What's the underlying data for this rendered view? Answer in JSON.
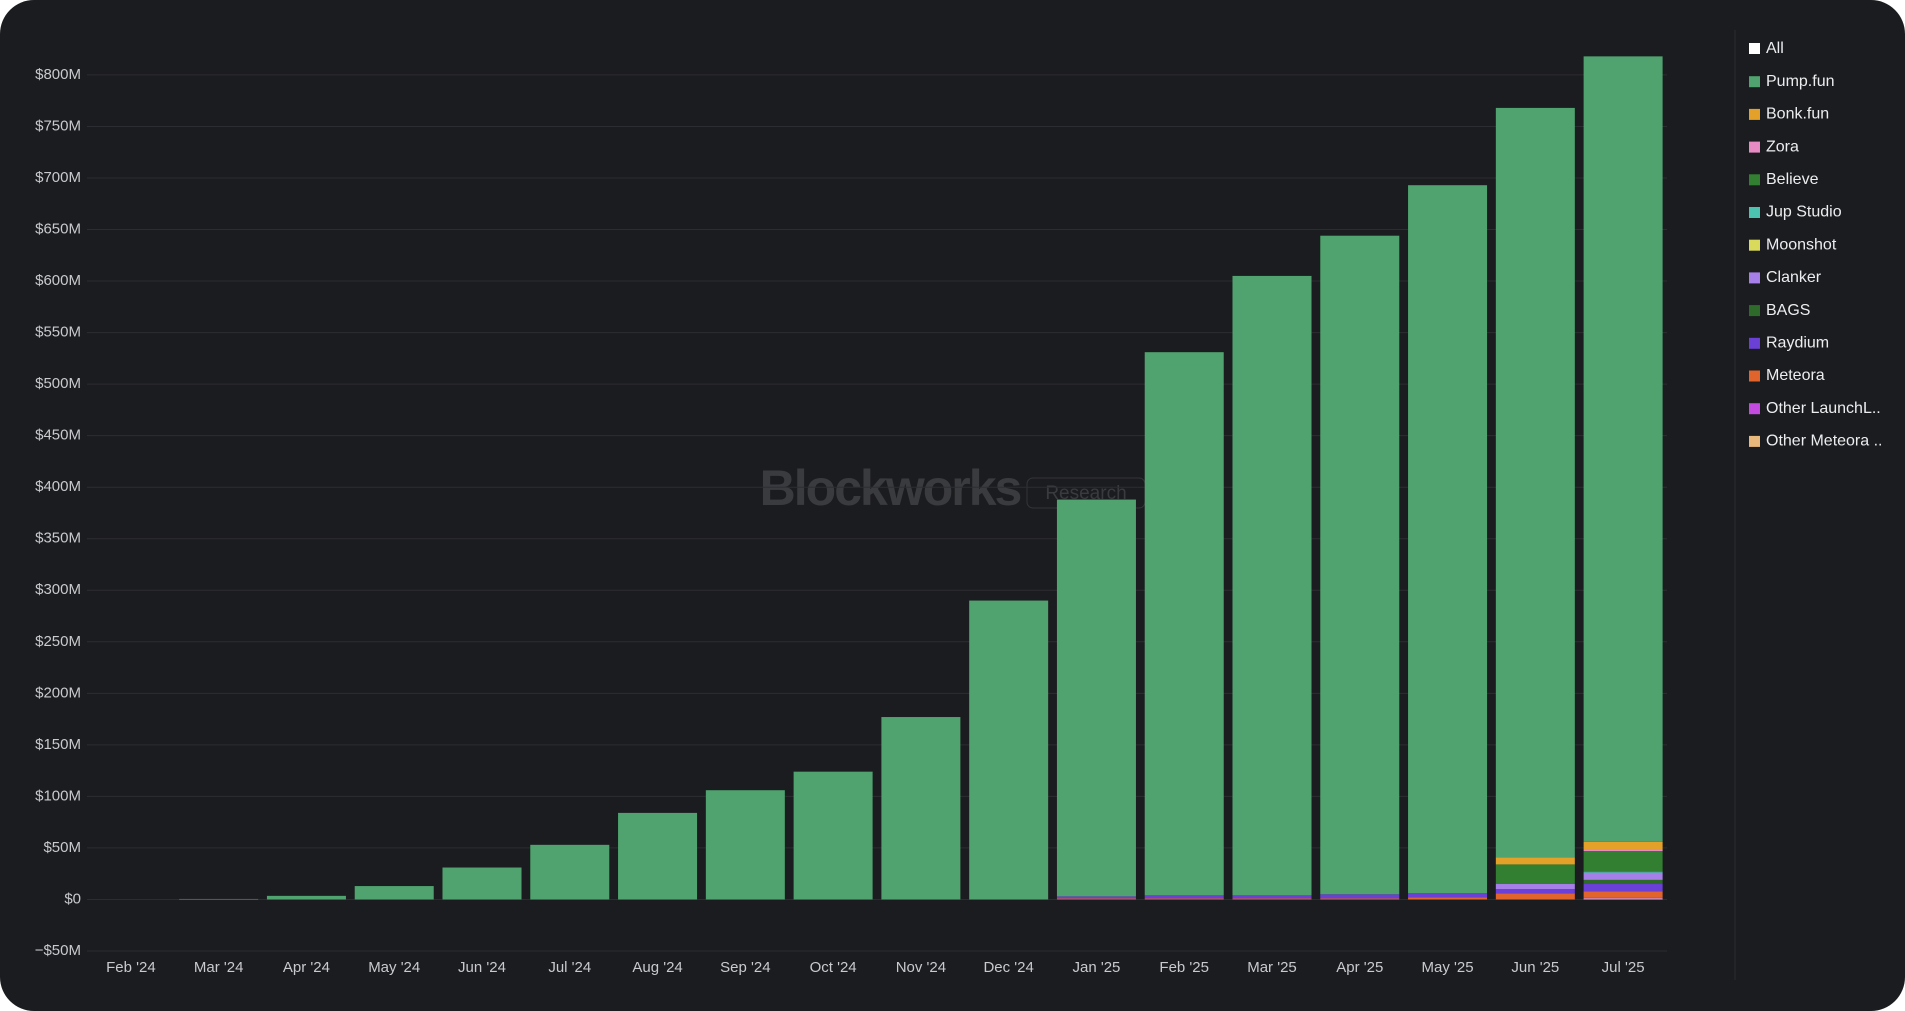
{
  "chart_data": {
    "type": "stacked_bar",
    "watermark": "Blockworks",
    "watermark_tag": "Research",
    "legend_toggle": "All",
    "categories": [
      "Feb '24",
      "Mar '24",
      "Apr '24",
      "May '24",
      "Jun '24",
      "Jul '24",
      "Aug '24",
      "Sep '24",
      "Oct '24",
      "Nov '24",
      "Dec '24",
      "Jan '25",
      "Feb '25",
      "Mar '25",
      "Apr '25",
      "May '25",
      "Jun '25",
      "Jul '25"
    ],
    "ylim": [
      -50000000,
      830000000
    ],
    "yticks": [
      {
        "value": -50000000,
        "label": "−$50M"
      },
      {
        "value": 0,
        "label": "$0"
      },
      {
        "value": 50000000,
        "label": "$50M"
      },
      {
        "value": 100000000,
        "label": "$100M"
      },
      {
        "value": 150000000,
        "label": "$150M"
      },
      {
        "value": 200000000,
        "label": "$200M"
      },
      {
        "value": 250000000,
        "label": "$250M"
      },
      {
        "value": 300000000,
        "label": "$300M"
      },
      {
        "value": 350000000,
        "label": "$350M"
      },
      {
        "value": 400000000,
        "label": "$400M"
      },
      {
        "value": 450000000,
        "label": "$450M"
      },
      {
        "value": 500000000,
        "label": "$500M"
      },
      {
        "value": 550000000,
        "label": "$550M"
      },
      {
        "value": 600000000,
        "label": "$600M"
      },
      {
        "value": 650000000,
        "label": "$650M"
      },
      {
        "value": 700000000,
        "label": "$700M"
      },
      {
        "value": 750000000,
        "label": "$750M"
      },
      {
        "value": 800000000,
        "label": "$800M"
      }
    ],
    "grid": true,
    "legend": "right",
    "series": [
      {
        "name": "Pump.fun",
        "color": "#50a36f",
        "values": [
          0,
          500000,
          3500000,
          13000000,
          31000000,
          53000000,
          84000000,
          106000000,
          124000000,
          177000000,
          290000000,
          385000000,
          527000000,
          601000000,
          639000000,
          687000000,
          727000000,
          762000000
        ]
      },
      {
        "name": "Bonk.fun",
        "color": "#e3a12a",
        "values": [
          0,
          0,
          0,
          0,
          0,
          0,
          0,
          0,
          0,
          0,
          0,
          0,
          0,
          0,
          0,
          0,
          7000000,
          8000000
        ]
      },
      {
        "name": "Zora",
        "color": "#e68bc3",
        "values": [
          0,
          0,
          0,
          0,
          0,
          0,
          0,
          0,
          0,
          0,
          0,
          0,
          0,
          0,
          0,
          0,
          0,
          1000000
        ]
      },
      {
        "name": "Believe",
        "color": "#327f31",
        "values": [
          0,
          0,
          0,
          0,
          0,
          0,
          0,
          0,
          0,
          0,
          0,
          0,
          0,
          0,
          0,
          0,
          19000000,
          20000000
        ]
      },
      {
        "name": "Jup Studio",
        "color": "#4cc3b1",
        "values": [
          0,
          0,
          0,
          0,
          0,
          0,
          0,
          0,
          0,
          0,
          0,
          0,
          0,
          0,
          0,
          0,
          0,
          1000000
        ]
      },
      {
        "name": "Moonshot",
        "color": "#d9d95b",
        "values": [
          0,
          0,
          0,
          0,
          0,
          0,
          0,
          0,
          0,
          0,
          0,
          0,
          0,
          0,
          0,
          0,
          0,
          0
        ]
      },
      {
        "name": "Clanker",
        "color": "#a77fe8",
        "values": [
          0,
          0,
          0,
          0,
          0,
          0,
          0,
          0,
          0,
          0,
          0,
          0,
          0,
          0,
          0,
          0,
          5000000,
          7000000
        ]
      },
      {
        "name": "BAGS",
        "color": "#2e6b2b",
        "values": [
          0,
          0,
          0,
          0,
          0,
          0,
          0,
          0,
          0,
          0,
          0,
          0,
          0,
          0,
          0,
          0,
          0,
          4000000
        ]
      },
      {
        "name": "Raydium",
        "color": "#6a40d6",
        "values": [
          0,
          0,
          0,
          0,
          0,
          0,
          0,
          0,
          0,
          0,
          0,
          2000000,
          3000000,
          3000000,
          4000000,
          4000000,
          4000000,
          7000000
        ]
      },
      {
        "name": "Meteora",
        "color": "#e0642b",
        "values": [
          0,
          0,
          0,
          0,
          0,
          0,
          0,
          0,
          0,
          0,
          0,
          1000000,
          1000000,
          1000000,
          1000000,
          2000000,
          6000000,
          6000000
        ]
      },
      {
        "name": "Other LaunchL..",
        "color": "#c44be0",
        "values": [
          0,
          0,
          0,
          0,
          0,
          0,
          0,
          0,
          0,
          0,
          0,
          0,
          0,
          0,
          0,
          0,
          0,
          1000000
        ]
      },
      {
        "name": "Other Meteora ..",
        "color": "#e8b97b",
        "values": [
          0,
          0,
          0,
          0,
          0,
          0,
          0,
          0,
          0,
          0,
          0,
          0,
          0,
          0,
          0,
          0,
          0,
          1000000
        ]
      }
    ]
  }
}
